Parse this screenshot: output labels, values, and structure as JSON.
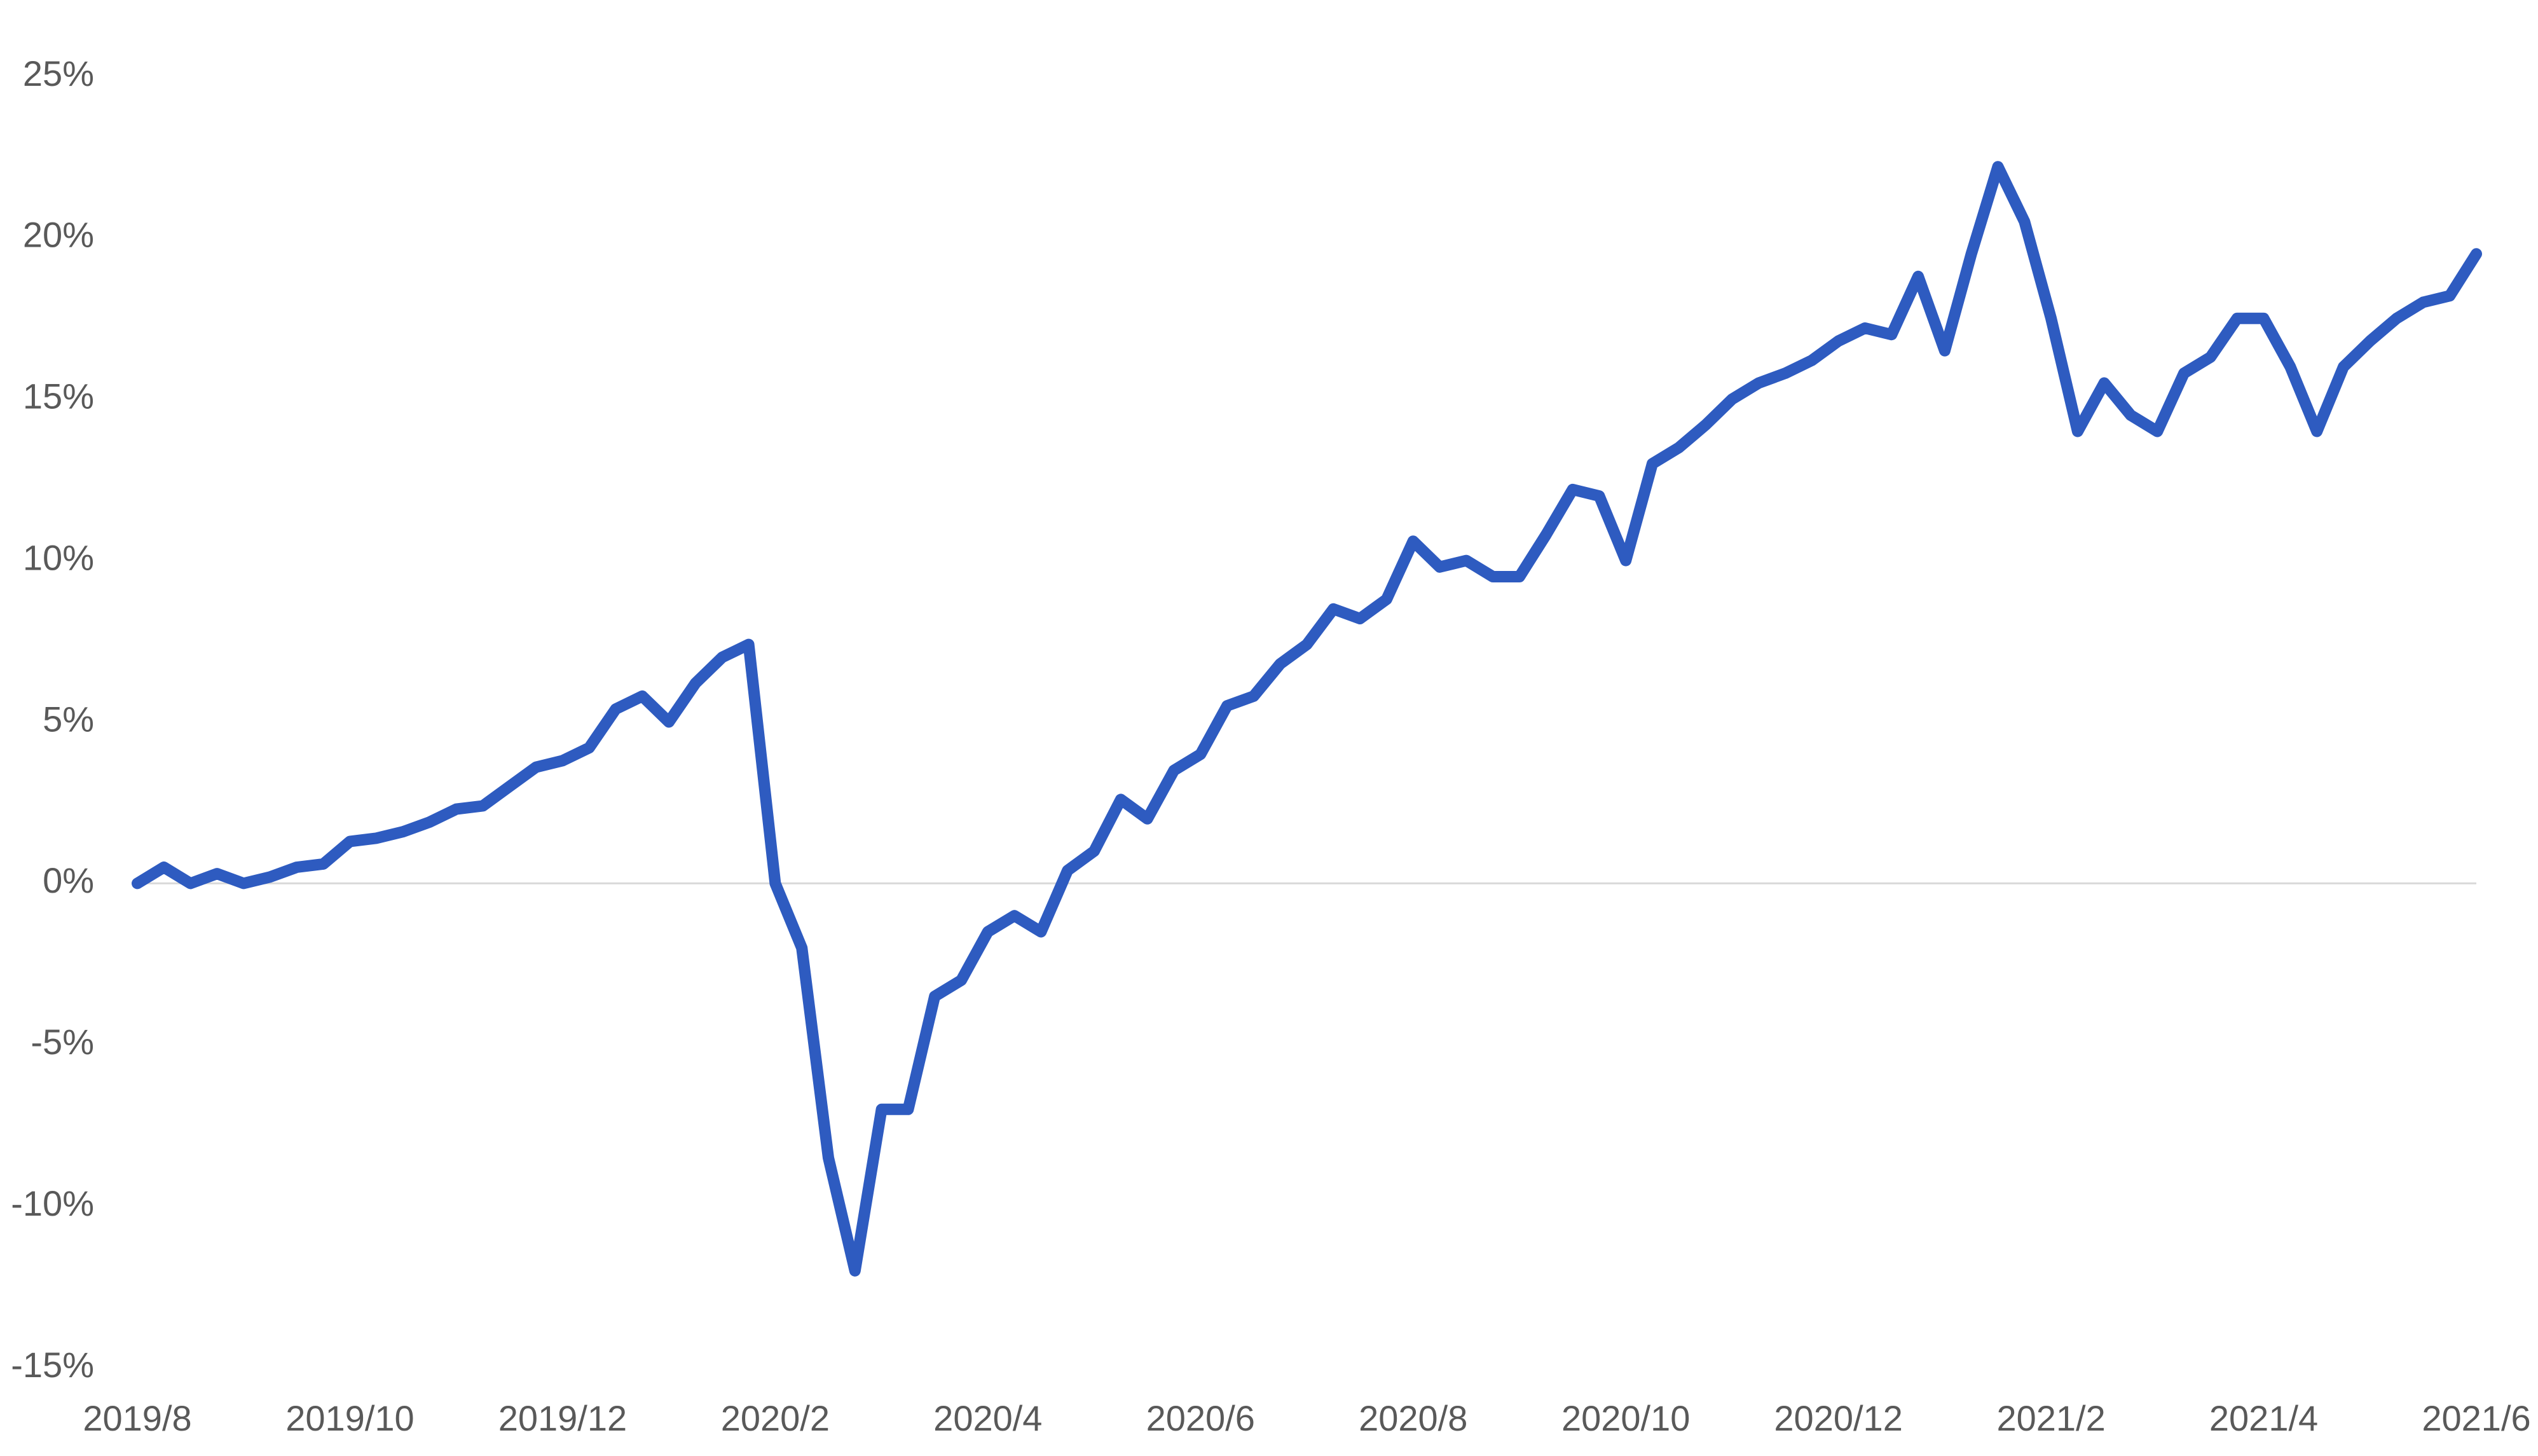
{
  "chart_data": {
    "type": "line",
    "categories": [
      "2019/8",
      null,
      null,
      null,
      null,
      null,
      null,
      null,
      "2019/10",
      null,
      null,
      null,
      null,
      null,
      null,
      null,
      "2019/12",
      null,
      null,
      null,
      null,
      null,
      null,
      null,
      "2020/2",
      null,
      null,
      null,
      null,
      null,
      null,
      null,
      "2020/4",
      null,
      null,
      null,
      null,
      null,
      null,
      null,
      "2020/6",
      null,
      null,
      null,
      null,
      null,
      null,
      null,
      "2020/8",
      null,
      null,
      null,
      null,
      null,
      null,
      null,
      "2020/10",
      null,
      null,
      null,
      null,
      null,
      null,
      null,
      "2020/12",
      null,
      null,
      null,
      null,
      null,
      null,
      null,
      "2021/2",
      null,
      null,
      null,
      null,
      null,
      null,
      null,
      "2021/4",
      null,
      null,
      null,
      null,
      null,
      null,
      null,
      "2021/6"
    ],
    "values": [
      0,
      0.5,
      0,
      0.3,
      0,
      0.2,
      0.5,
      0.6,
      1.3,
      1.4,
      1.6,
      1.9,
      2.3,
      2.4,
      3.0,
      3.6,
      3.8,
      4.2,
      5.4,
      5.8,
      5.0,
      6.2,
      7.0,
      7.4,
      0,
      -2,
      -8.5,
      -12,
      -7,
      -7,
      -3.5,
      -3,
      -1.5,
      -1,
      -1.5,
      0.4,
      1.0,
      2.6,
      2.0,
      3.5,
      4,
      5.5,
      5.8,
      6.8,
      7.4,
      8.5,
      8.2,
      8.8,
      10.6,
      9.8,
      10.0,
      9.5,
      9.5,
      10.8,
      12.2,
      12.0,
      10.0,
      13.0,
      13.5,
      14.2,
      15.0,
      15.5,
      15.8,
      16.2,
      16.8,
      17.2,
      17.0,
      18.8,
      16.5,
      19.5,
      22.2,
      20.5,
      17.5,
      14.0,
      15.5,
      14.5,
      14.0,
      15.8,
      16.3,
      17.5,
      17.5,
      16.0,
      14.0,
      16.0,
      16.8,
      17.5,
      18.0,
      18.2,
      19.5
    ],
    "color": "#2e5bc0",
    "ylim": [
      -15,
      25
    ],
    "yticks": [
      {
        "value": -15,
        "label": "-15%"
      },
      {
        "value": -10,
        "label": "-10%"
      },
      {
        "value": -5,
        "label": "-5%"
      },
      {
        "value": 0,
        "label": "0%"
      },
      {
        "value": 5,
        "label": "5%"
      },
      {
        "value": 10,
        "label": "10%"
      },
      {
        "value": 15,
        "label": "15%"
      },
      {
        "value": 20,
        "label": "20%"
      },
      {
        "value": 25,
        "label": "25%"
      }
    ],
    "zero_line": true
  }
}
